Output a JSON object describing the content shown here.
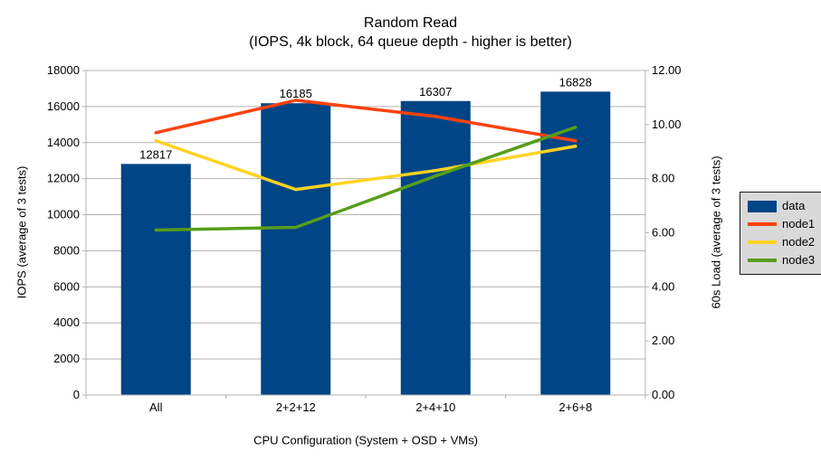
{
  "title": "Random Read",
  "subtitle": "(IOPS, 4k block, 64 queue depth - higher is better)",
  "chart_data": {
    "type": "bar",
    "subtype": "bars with line overlay, dual value axes",
    "categories": [
      "All",
      "2+2+12",
      "2+4+10",
      "2+6+8"
    ],
    "series": [
      {
        "name": "data",
        "type": "bar",
        "axis": "left",
        "color": "#004586",
        "values": [
          12817,
          16185,
          16307,
          16828
        ],
        "labels": [
          "12817",
          "16185",
          "16307",
          "16828"
        ]
      },
      {
        "name": "node1",
        "type": "line",
        "axis": "right",
        "color": "#ff420e",
        "values": [
          9.7,
          10.9,
          10.3,
          9.4
        ]
      },
      {
        "name": "node2",
        "type": "line",
        "axis": "right",
        "color": "#ffd320",
        "values": [
          9.4,
          7.6,
          8.3,
          9.2
        ]
      },
      {
        "name": "node3",
        "type": "line",
        "axis": "right",
        "color": "#579d1c",
        "values": [
          6.1,
          6.2,
          8.1,
          9.9
        ]
      }
    ],
    "left_axis": {
      "title": "IOPS (average of 3 tests)",
      "min": 0,
      "max": 18000,
      "step": 2000,
      "tick_labels": [
        "0",
        "2000",
        "4000",
        "6000",
        "8000",
        "10000",
        "12000",
        "14000",
        "16000",
        "18000"
      ]
    },
    "right_axis": {
      "title": "60s Load (average of 3 tests)",
      "min": 0,
      "max": 12,
      "step": 2,
      "tick_labels": [
        "0.00",
        "2.00",
        "4.00",
        "6.00",
        "8.00",
        "10.00",
        "12.00"
      ]
    },
    "x_axis": {
      "title": "CPU Configuration (System + OSD + VMs)"
    },
    "legend": {
      "position": "right",
      "entries": [
        "data",
        "node1",
        "node2",
        "node3"
      ]
    },
    "grid": "horizontal gridlines at every left-axis step",
    "colors": {
      "grid": "#b3b3b3",
      "axis": "#b3b3b3",
      "text": "#000000",
      "legend_bg": "#d9d9d9",
      "legend_border": "#1a1a1a",
      "background": "#ffffff"
    }
  }
}
